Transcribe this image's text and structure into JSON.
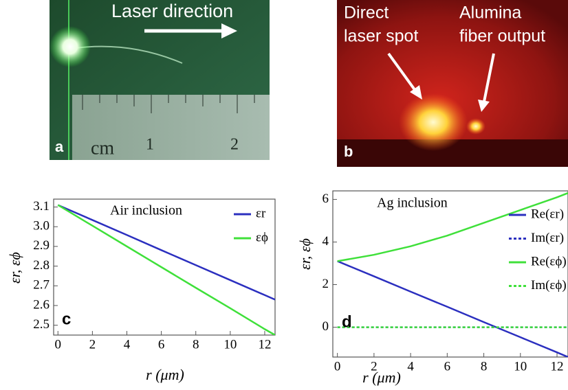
{
  "photos": [
    {
      "label": "a",
      "texts": [
        "Laser direction",
        "cm",
        "1",
        "2"
      ]
    },
    {
      "label": "b",
      "texts": [
        "Direct",
        "laser spot",
        "Alumina",
        "fiber output"
      ]
    }
  ],
  "chart_data": [
    {
      "type": "line",
      "panel": "c",
      "annotation": "Air inclusion",
      "xlabel": "r (μm)",
      "ylabel": "εr, εϕ",
      "x": [
        0,
        2,
        4,
        6,
        8,
        10,
        12,
        12.6
      ],
      "series": [
        {
          "name": "εr",
          "color": "#2b2fbf",
          "style": "solid",
          "values": [
            3.11,
            3.034,
            2.958,
            2.881,
            2.805,
            2.729,
            2.653,
            2.63
          ]
        },
        {
          "name": "εϕ",
          "color": "#3fe03a",
          "style": "solid",
          "values": [
            3.11,
            3.005,
            2.9,
            2.795,
            2.69,
            2.586,
            2.48,
            2.45
          ]
        }
      ],
      "xlim": [
        -0.25,
        12.6
      ],
      "xticks": [
        0,
        2,
        4,
        6,
        8,
        10,
        12
      ],
      "ylim": [
        2.45,
        3.14
      ],
      "yticks": [
        2.5,
        2.6,
        2.7,
        2.8,
        2.9,
        {
          "value": 3,
          "label": "3.0"
        },
        3.1
      ]
    },
    {
      "type": "line",
      "panel": "d",
      "annotation": "Ag inclusion",
      "xlabel": "r (μm)",
      "ylabel": "εr, εϕ",
      "x": [
        0,
        2,
        4,
        6,
        8,
        10,
        12,
        12.6
      ],
      "series": [
        {
          "name": "Re(εr)",
          "color": "#2b2fbf",
          "style": "solid",
          "values": [
            3.1,
            2.39,
            1.67,
            0.96,
            0.24,
            -0.47,
            -1.18,
            -1.4
          ]
        },
        {
          "name": "Im(εr)",
          "color": "#2b2fbf",
          "style": "dotted",
          "values": [
            0,
            0,
            0,
            0,
            0,
            0,
            0,
            0
          ]
        },
        {
          "name": "Re(εϕ)",
          "color": "#3fe03a",
          "style": "solid",
          "values": [
            3.1,
            3.4,
            3.8,
            4.3,
            4.9,
            5.5,
            6.1,
            6.3
          ]
        },
        {
          "name": "Im(εϕ)",
          "color": "#3fe03a",
          "style": "dotted",
          "values": [
            0,
            0,
            0,
            0,
            0,
            0,
            0,
            0
          ]
        }
      ],
      "xlim": [
        -0.25,
        12.6
      ],
      "xticks": [
        0,
        2,
        4,
        6,
        8,
        10,
        12
      ],
      "ylim": [
        -1.4,
        6.4
      ],
      "yticks": [
        0,
        2,
        4,
        6
      ]
    }
  ]
}
